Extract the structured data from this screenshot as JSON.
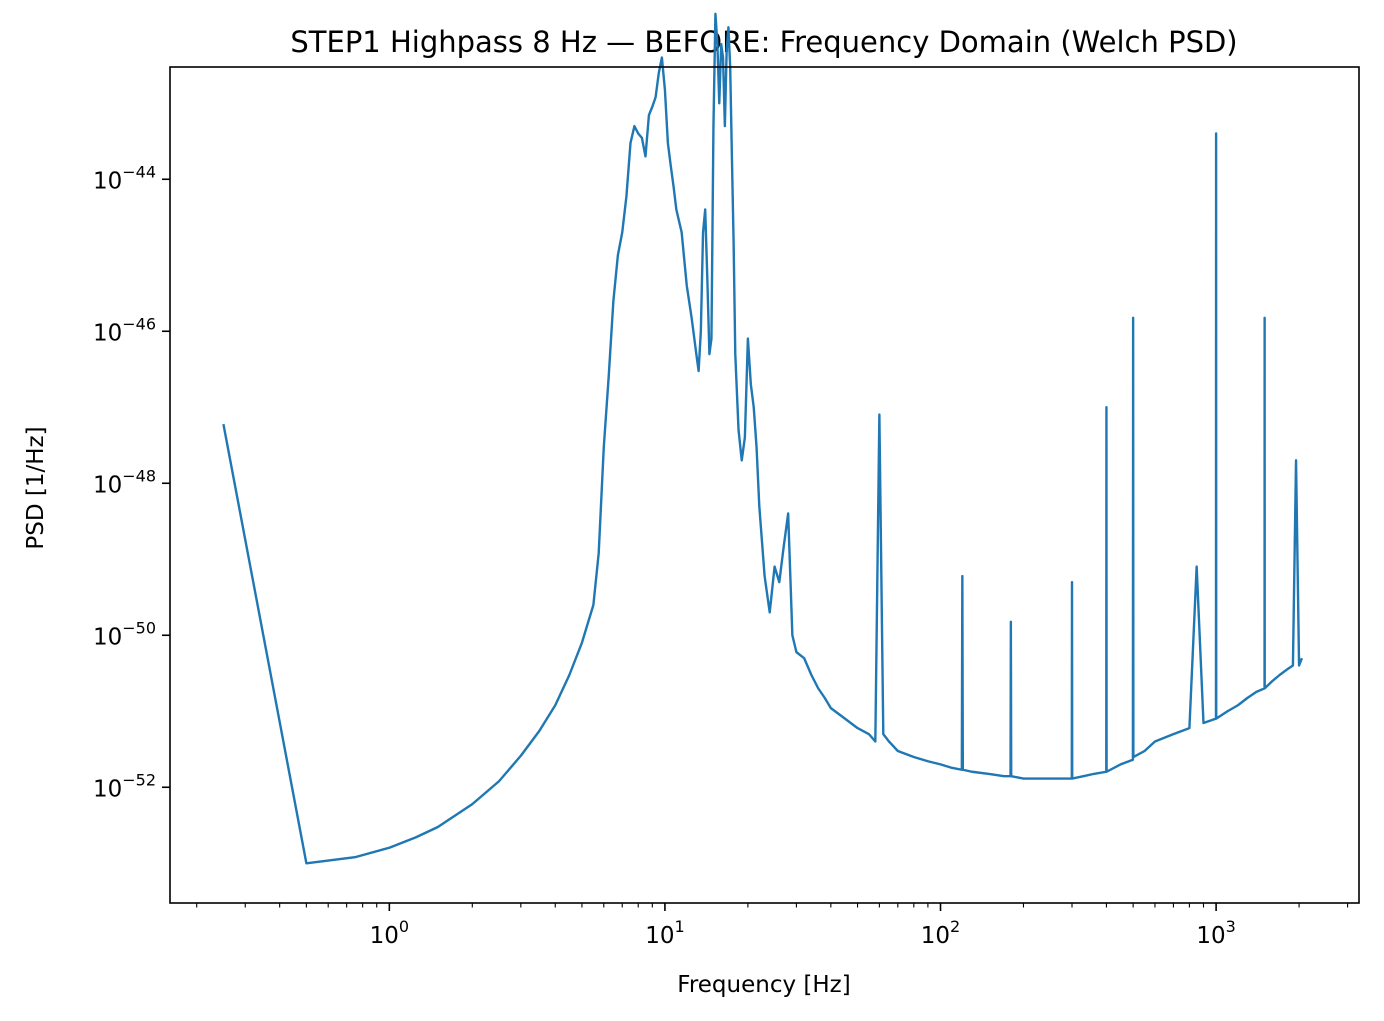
{
  "chart_data": {
    "type": "line",
    "title": "STEP1 Highpass 8 Hz — BEFORE: Frequency Domain (Welch PSD)",
    "xlabel": "Frequency [Hz]",
    "ylabel": "PSD [1/Hz]",
    "xscale": "log",
    "yscale": "log",
    "xlim": [
      0.16,
      3300
    ],
    "ylim": [
      3e-54,
      3e-43
    ],
    "grid": false,
    "line_color": "#1f77b4",
    "x_ticks": [
      {
        "value": 1,
        "base": "10",
        "exp": "0"
      },
      {
        "value": 10,
        "base": "10",
        "exp": "1"
      },
      {
        "value": 100,
        "base": "10",
        "exp": "2"
      },
      {
        "value": 1000,
        "base": "10",
        "exp": "3"
      }
    ],
    "y_ticks": [
      {
        "value": 1e-52,
        "base": "10",
        "exp": "−52"
      },
      {
        "value": 1e-50,
        "base": "10",
        "exp": "−50"
      },
      {
        "value": 1e-48,
        "base": "10",
        "exp": "−48"
      },
      {
        "value": 1e-46,
        "base": "10",
        "exp": "−46"
      },
      {
        "value": 1e-44,
        "base": "10",
        "exp": "−44"
      }
    ],
    "series": [
      {
        "x": [
          0.25,
          0.5,
          0.75,
          1.0,
          1.25,
          1.5,
          2.0,
          2.5,
          3.0,
          3.5,
          4.0,
          4.5,
          5.0,
          5.5,
          5.75,
          6.0,
          6.25,
          6.5,
          6.75,
          7.0,
          7.25,
          7.5,
          7.75,
          8.0,
          8.25,
          8.5,
          8.75,
          9.0,
          9.25,
          9.5,
          9.75,
          10.0,
          10.25,
          10.5,
          10.75,
          11.0,
          11.5,
          12.0,
          12.5,
          13.0,
          13.25,
          13.5,
          13.75,
          14.0,
          14.25,
          14.5,
          14.75,
          15.0,
          15.25,
          15.5,
          15.75,
          16.0,
          16.25,
          16.5,
          16.75,
          17.0,
          17.25,
          17.5,
          17.75,
          18.0,
          18.5,
          19.0,
          19.5,
          20.0,
          20.5,
          21.0,
          21.5,
          22.0,
          23.0,
          24.0,
          25.0,
          26.0,
          27.0,
          28.0,
          29.0,
          30.0,
          32.0,
          34.0,
          36.0,
          38.0,
          40.0,
          45.0,
          50.0,
          55.0,
          58.0,
          60.0,
          62.0,
          65.0,
          70.0,
          80.0,
          90.0,
          100.0,
          110.0,
          119.5,
          120.0,
          120.5,
          130.0,
          150.0,
          170.0,
          179.5,
          180.0,
          180.5,
          200.0,
          230.0,
          260.0,
          299.5,
          300.0,
          300.5,
          330.0,
          360.0,
          399.5,
          400.0,
          400.5,
          450.0,
          499.0,
          500.0,
          501.0,
          550.0,
          600.0,
          700.0,
          800.0,
          850.0,
          900.0,
          999.0,
          1000.0,
          1001.0,
          1100.0,
          1200.0,
          1300.0,
          1400.0,
          1499.0,
          1500.0,
          1501.0,
          1600.0,
          1700.0,
          1800.0,
          1900.0,
          1950.0,
          2000.0,
          2048.0
        ],
        "y": [
          6e-48,
          1e-53,
          1.2e-53,
          1.6e-53,
          2.2e-53,
          3e-53,
          6e-53,
          1.2e-52,
          2.6e-52,
          5.5e-52,
          1.2e-51,
          3e-51,
          8e-51,
          2.5e-50,
          1.2e-49,
          3e-48,
          2.5e-47,
          2.5e-46,
          1e-45,
          2e-45,
          6e-45,
          3e-44,
          5e-44,
          4e-44,
          3.5e-44,
          2e-44,
          7e-44,
          9e-44,
          1.2e-43,
          2.5e-43,
          4e-43,
          1.5e-43,
          3e-44,
          1.5e-44,
          8e-45,
          4e-45,
          2e-45,
          4e-46,
          1.5e-46,
          5e-47,
          3e-47,
          1e-46,
          2e-45,
          4e-45,
          5e-46,
          5e-47,
          8e-47,
          5e-44,
          1.5e-42,
          6e-43,
          1e-43,
          6e-43,
          4e-43,
          5e-44,
          5e-43,
          1e-42,
          3e-43,
          2e-44,
          1.5e-45,
          5e-47,
          5e-48,
          2e-48,
          4e-48,
          8e-47,
          2e-47,
          1e-47,
          3e-48,
          5e-49,
          6e-50,
          2e-50,
          8e-50,
          5e-50,
          1.5e-49,
          4e-49,
          1e-50,
          6e-51,
          5e-51,
          3e-51,
          2e-51,
          1.5e-51,
          1.1e-51,
          8e-52,
          6e-52,
          5e-52,
          4e-52,
          8e-48,
          5e-52,
          4e-52,
          3e-52,
          2.5e-52,
          2.2e-52,
          2e-52,
          1.8e-52,
          1.7e-52,
          6e-50,
          1.7e-52,
          1.6e-52,
          1.5e-52,
          1.4e-52,
          1.4e-52,
          1.5e-50,
          1.4e-52,
          1.3e-52,
          1.3e-52,
          1.3e-52,
          1.3e-52,
          5e-50,
          1.3e-52,
          1.4e-52,
          1.5e-52,
          1.6e-52,
          1e-47,
          1.6e-52,
          2e-52,
          2.3e-52,
          1.5e-46,
          2.5e-52,
          3e-52,
          4e-52,
          5e-52,
          6e-52,
          8e-50,
          7e-52,
          8e-52,
          4e-44,
          8e-52,
          1e-51,
          1.2e-51,
          1.5e-51,
          1.8e-51,
          2e-51,
          1.5e-46,
          2e-51,
          2.5e-51,
          3e-51,
          3.5e-51,
          4e-51,
          2e-48,
          4e-51,
          5e-51
        ]
      }
    ]
  }
}
